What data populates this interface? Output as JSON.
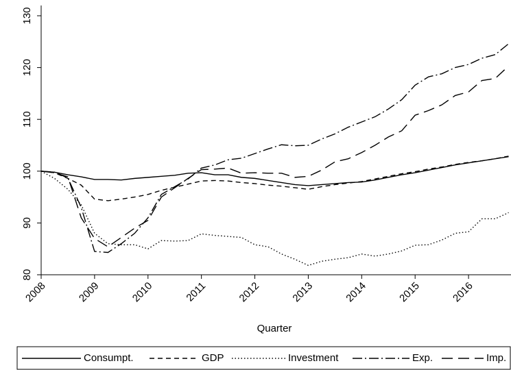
{
  "chart_data": {
    "type": "line",
    "x_label": "Quarter",
    "x": [
      2008,
      2008.25,
      2008.5,
      2008.75,
      2009,
      2009.25,
      2009.5,
      2009.75,
      2010,
      2010.25,
      2010.5,
      2010.75,
      2011,
      2011.25,
      2011.5,
      2011.75,
      2012,
      2012.25,
      2012.5,
      2012.75,
      2013,
      2013.25,
      2013.5,
      2013.75,
      2014,
      2014.25,
      2014.5,
      2014.75,
      2015,
      2015.25,
      2015.5,
      2015.75,
      2016,
      2016.25,
      2016.5,
      2016.75
    ],
    "xlim": [
      2008,
      2016.75
    ],
    "xticks": [
      2008,
      2009,
      2010,
      2011,
      2012,
      2013,
      2014,
      2015,
      2016
    ],
    "ylim": [
      80,
      130
    ],
    "yticks": [
      80,
      90,
      100,
      110,
      120,
      130
    ],
    "series": [
      {
        "name": "Consumpt.",
        "color": "#000000",
        "line_style": "solid",
        "values": [
          100,
          99.8,
          99.3,
          98.9,
          98.4,
          98.4,
          98.3,
          98.6,
          98.8,
          99.0,
          99.2,
          99.6,
          99.7,
          99.3,
          99.3,
          98.8,
          98.6,
          98.2,
          97.8,
          97.4,
          97.2,
          97.4,
          97.6,
          97.8,
          97.9,
          98.3,
          98.8,
          99.3,
          99.7,
          100.2,
          100.7,
          101.2,
          101.6,
          102.0,
          102.4,
          102.8
        ]
      },
      {
        "name": "GDP",
        "color": "#000000",
        "line_style": "dashed",
        "values": [
          100,
          99.7,
          98.6,
          97.3,
          94.6,
          94.3,
          94.6,
          95.0,
          95.5,
          96.3,
          96.9,
          97.5,
          98.1,
          98.2,
          98.1,
          97.8,
          97.6,
          97.3,
          97.1,
          96.8,
          96.5,
          97.0,
          97.4,
          97.7,
          98.0,
          98.5,
          99.0,
          99.5,
          99.9,
          100.4,
          100.8,
          101.3,
          101.7,
          102.0,
          102.4,
          102.9
        ]
      },
      {
        "name": "Investment",
        "color": "#000000",
        "line_style": "dotted",
        "values": [
          100,
          98.6,
          96.5,
          93.5,
          88.0,
          86.0,
          85.8,
          85.8,
          85.0,
          86.6,
          86.5,
          86.6,
          87.9,
          87.6,
          87.4,
          87.2,
          85.8,
          85.4,
          84.0,
          83.0,
          81.8,
          82.6,
          83.0,
          83.3,
          84.0,
          83.6,
          84.0,
          84.6,
          85.7,
          85.8,
          86.7,
          88.0,
          88.3,
          90.8,
          90.8,
          92.0
        ]
      },
      {
        "name": "Exp.",
        "color": "#000000",
        "line_style": "dashdot",
        "values": [
          100,
          99.8,
          98.7,
          93.0,
          84.5,
          84.3,
          86.0,
          88.0,
          91.0,
          95.5,
          97.0,
          98.5,
          100.6,
          101.2,
          102.2,
          102.5,
          103.4,
          104.3,
          105.1,
          104.9,
          105.0,
          106.2,
          107.2,
          108.5,
          109.5,
          110.5,
          112.0,
          113.8,
          116.6,
          118.2,
          118.8,
          120.0,
          120.6,
          121.8,
          122.5,
          124.6
        ]
      },
      {
        "name": "Imp.",
        "color": "#000000",
        "line_style": "longdash",
        "values": [
          100,
          99.7,
          98.9,
          91.0,
          87.0,
          85.4,
          87.2,
          89.0,
          90.5,
          95.0,
          96.8,
          98.6,
          100.3,
          100.4,
          100.6,
          99.6,
          99.7,
          99.6,
          99.6,
          98.8,
          99.0,
          100.2,
          101.8,
          102.4,
          103.6,
          105.0,
          106.6,
          107.8,
          110.8,
          111.7,
          112.8,
          114.6,
          115.3,
          117.5,
          117.9,
          120.3
        ]
      }
    ],
    "legend": "bottom"
  }
}
